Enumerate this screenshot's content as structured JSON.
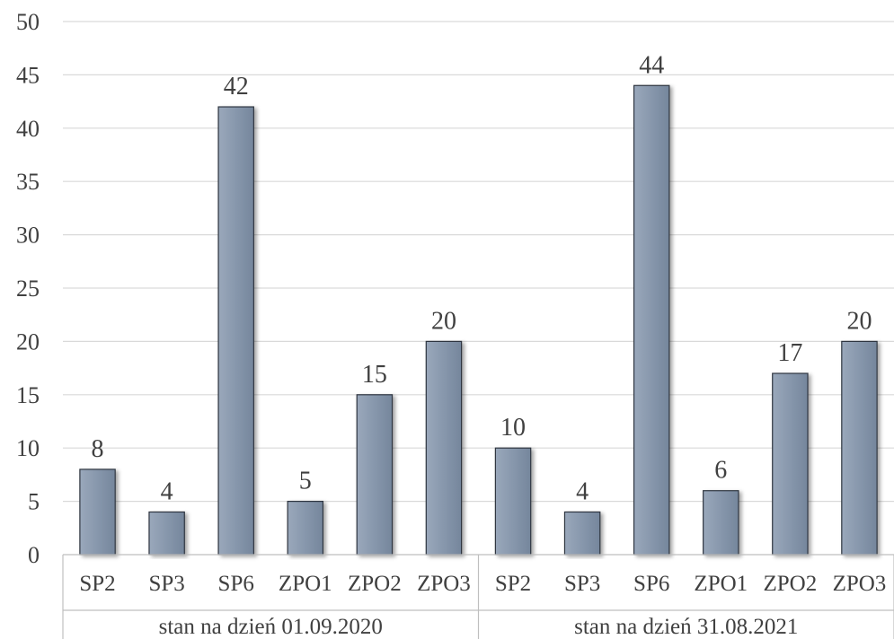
{
  "chart_data": {
    "type": "bar",
    "groups": [
      {
        "label": "stan na dzień 01.09.2020",
        "categories": [
          "SP2",
          "SP3",
          "SP6",
          "ZPO1",
          "ZPO2",
          "ZPO3"
        ],
        "values": [
          8,
          4,
          42,
          5,
          15,
          20
        ]
      },
      {
        "label": "stan na dzień 31.08.2021",
        "categories": [
          "SP2",
          "SP3",
          "SP6",
          "ZPO1",
          "ZPO2",
          "ZPO3"
        ],
        "values": [
          10,
          4,
          44,
          6,
          17,
          20
        ]
      }
    ],
    "ylim": [
      0,
      50
    ],
    "yticks": [
      0,
      5,
      10,
      15,
      20,
      25,
      30,
      35,
      40,
      45,
      50
    ],
    "grid": true,
    "data_labels": true,
    "bar_color": "#8696ab"
  }
}
